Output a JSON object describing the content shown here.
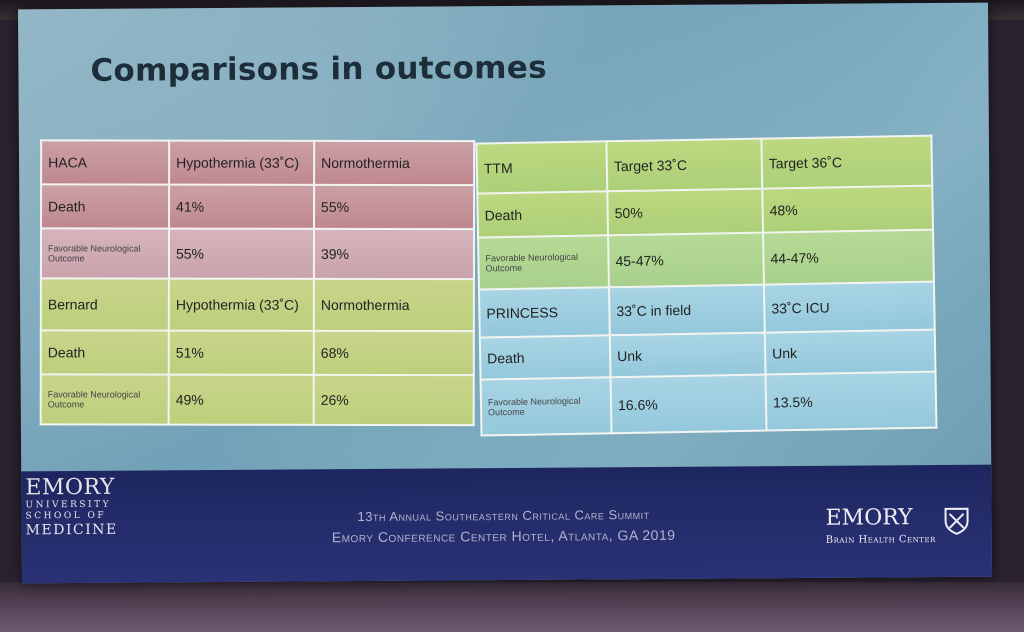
{
  "title": "Comparisons in outcomes",
  "haca": {
    "header": [
      "HACA",
      "Hypothermia (33˚C)",
      "Normothermia"
    ],
    "death": [
      "Death",
      "41%",
      "55%"
    ],
    "fav": [
      "Favorable Neurological Outcome",
      "55%",
      "39%"
    ]
  },
  "bernard": {
    "header": [
      "Bernard",
      "Hypothermia (33˚C)",
      "Normothermia"
    ],
    "death": [
      "Death",
      "51%",
      "68%"
    ],
    "fav": [
      "Favorable Neurological Outcome",
      "49%",
      "26%"
    ]
  },
  "ttm": {
    "header": [
      "TTM",
      "Target 33˚C",
      "Target 36˚C"
    ],
    "death": [
      "Death",
      "50%",
      "48%"
    ],
    "fav": [
      "Favorable Neurological Outcome",
      "45-47%",
      "44-47%"
    ]
  },
  "princess": {
    "header": [
      "PRINCESS",
      "33˚C in field",
      "33˚C ICU"
    ],
    "death": [
      "Death",
      "Unk",
      "Unk"
    ],
    "fav": [
      "Favorable Neurological Outcome",
      "16.6%",
      "13.5%"
    ]
  },
  "footer": {
    "left_logo": [
      "EMORY",
      "UNIVERSITY",
      "SCHOOL OF",
      "MEDICINE"
    ],
    "summit_line1": "13th Annual Southeastern Critical Care Summit",
    "summit_line2": "Emory Conference Center Hotel, Atlanta, GA 2019",
    "right_logo": "EMORY",
    "right_sub": "Brain Health Center"
  }
}
